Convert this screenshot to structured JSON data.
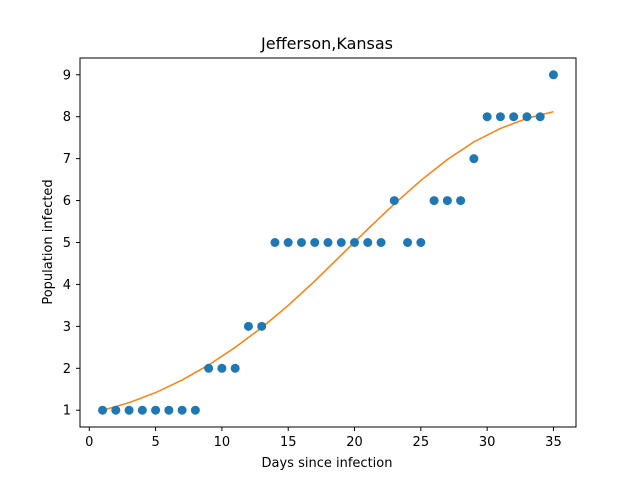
{
  "chart_data": {
    "type": "scatter",
    "title": "Jefferson,Kansas",
    "xlabel": "Days since infection",
    "ylabel": "Population infected",
    "xlim": [
      -0.7,
      36.7
    ],
    "ylim": [
      0.6,
      9.4
    ],
    "x_ticks": [
      0,
      5,
      10,
      15,
      20,
      25,
      30,
      35
    ],
    "y_ticks": [
      1,
      2,
      3,
      4,
      5,
      6,
      7,
      8,
      9
    ],
    "grid": false,
    "legend": "none",
    "series": [
      {
        "kind": "scatter",
        "color": "#1f77b4",
        "x": [
          1,
          2,
          3,
          4,
          5,
          6,
          7,
          8,
          9,
          10,
          11,
          12,
          13,
          14,
          15,
          16,
          17,
          18,
          19,
          20,
          21,
          22,
          23,
          24,
          25,
          26,
          27,
          28,
          29,
          30,
          31,
          32,
          33,
          34,
          35
        ],
        "y": [
          1,
          1,
          1,
          1,
          1,
          1,
          1,
          1,
          2,
          2,
          2,
          3,
          3,
          5,
          5,
          5,
          5,
          5,
          5,
          5,
          5,
          5,
          6,
          5,
          5,
          6,
          6,
          6,
          7,
          8,
          8,
          8,
          8,
          8,
          9
        ]
      },
      {
        "kind": "line",
        "color": "#ff7f0e",
        "x": [
          1,
          3,
          5,
          7,
          9,
          11,
          13,
          15,
          17,
          19,
          21,
          23,
          25,
          27,
          29,
          31,
          33,
          35
        ],
        "y": [
          1.0,
          1.18,
          1.42,
          1.72,
          2.08,
          2.5,
          2.97,
          3.5,
          4.08,
          4.7,
          5.32,
          5.92,
          6.48,
          6.98,
          7.4,
          7.72,
          7.96,
          8.12
        ]
      }
    ]
  }
}
